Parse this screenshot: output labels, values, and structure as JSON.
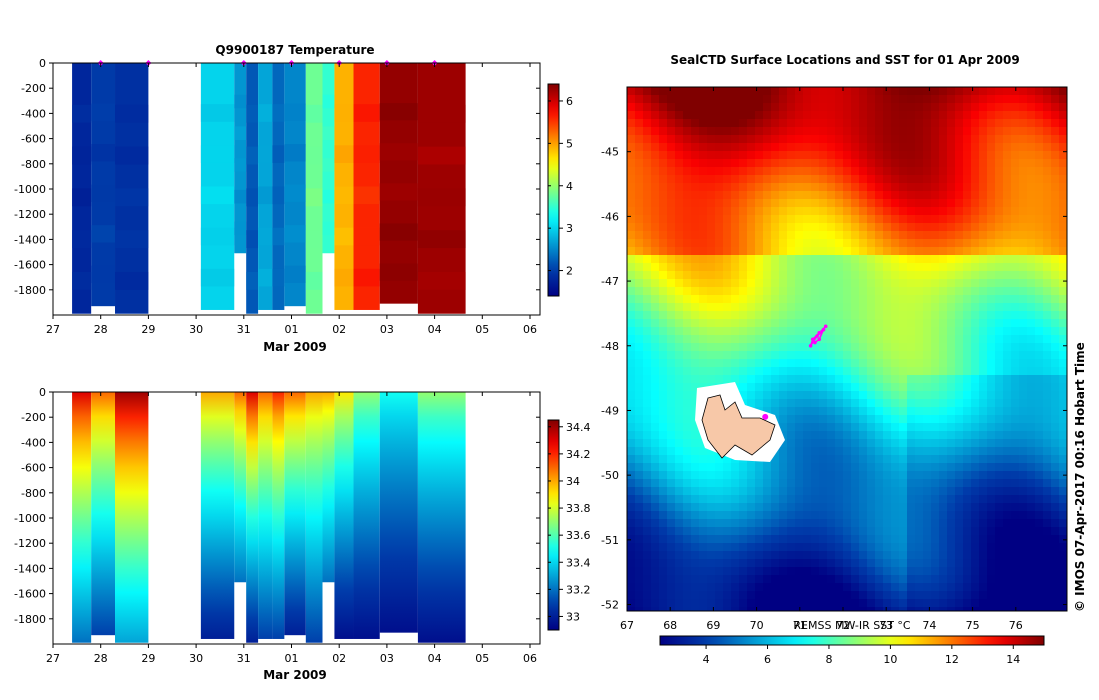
{
  "credit": "© IMOS 07-Apr-2017 00:16 Hobart Time",
  "chart_data": [
    {
      "type": "heatmap",
      "title": "Q9900187  Temperature",
      "xlabel": "Mar 2009",
      "ylabel": "",
      "x_tick_labels": [
        "27",
        "28",
        "29",
        "30",
        "31",
        "01",
        "02",
        "03",
        "04",
        "05",
        "06"
      ],
      "y_ticks": [
        0,
        -200,
        -400,
        -600,
        -800,
        -1000,
        -1200,
        -1400,
        -1600,
        -1800
      ],
      "xlim": [
        27,
        37.1
      ],
      "ylim": [
        -2000,
        0
      ],
      "colorbar": {
        "ticks": [
          2,
          3,
          4,
          5,
          6
        ],
        "range": [
          1.4,
          6.4
        ]
      },
      "profiles": [
        {
          "x0": 27.4,
          "x1": 27.8,
          "bottom": -1990,
          "value": 1.8
        },
        {
          "x0": 27.8,
          "x1": 28.3,
          "bottom": -1930,
          "value": 2.0
        },
        {
          "x0": 28.3,
          "x1": 29.0,
          "bottom": -1990,
          "value": 1.9
        },
        {
          "x0": 30.1,
          "x1": 30.8,
          "bottom": -1960,
          "value": 3.0
        },
        {
          "x0": 30.8,
          "x1": 31.05,
          "bottom": -1510,
          "value": 2.6
        },
        {
          "x0": 31.05,
          "x1": 31.3,
          "bottom": -1990,
          "value": 2.2
        },
        {
          "x0": 31.3,
          "x1": 31.6,
          "bottom": -1960,
          "value": 2.7
        },
        {
          "x0": 31.6,
          "x1": 31.85,
          "bottom": -1960,
          "value": 2.3
        },
        {
          "x0": 31.85,
          "x1": 32.3,
          "bottom": -1930,
          "value": 2.5
        },
        {
          "x0": 32.3,
          "x1": 32.65,
          "bottom": -1990,
          "value": 3.8
        },
        {
          "x0": 32.65,
          "x1": 32.9,
          "bottom": -1510,
          "value": 3.5
        },
        {
          "x0": 32.9,
          "x1": 33.3,
          "bottom": -1960,
          "value": 4.9
        },
        {
          "x0": 33.3,
          "x1": 33.85,
          "bottom": -1960,
          "value": 5.6
        },
        {
          "x0": 33.85,
          "x1": 34.65,
          "bottom": -1910,
          "value": 6.3
        },
        {
          "x0": 34.65,
          "x1": 35.65,
          "bottom": -1990,
          "value": 6.25
        }
      ],
      "surface_markers": [
        28,
        29,
        31,
        32,
        33,
        34,
        35
      ]
    },
    {
      "type": "heatmap",
      "title": "",
      "xlabel": "Mar 2009",
      "ylabel": "",
      "x_tick_labels": [
        "27",
        "28",
        "29",
        "30",
        "31",
        "01",
        "02",
        "03",
        "04",
        "05",
        "06"
      ],
      "y_ticks": [
        0,
        -200,
        -400,
        -600,
        -800,
        -1000,
        -1200,
        -1400,
        -1600,
        -1800
      ],
      "xlim": [
        27,
        37.1
      ],
      "ylim": [
        -2000,
        0
      ],
      "colorbar": {
        "ticks": [
          33,
          33.2,
          33.4,
          33.6,
          33.8,
          34,
          34.2,
          34.4
        ],
        "range": [
          32.9,
          34.45
        ]
      },
      "profiles": [
        {
          "x0": 27.4,
          "x1": 27.8,
          "bottom": -1990,
          "top_value": 34.3,
          "bottom_value": 33.2
        },
        {
          "x0": 27.8,
          "x1": 28.3,
          "bottom": -1930,
          "top_value": 34.1,
          "bottom_value": 33.1
        },
        {
          "x0": 28.3,
          "x1": 29.0,
          "bottom": -1990,
          "top_value": 34.4,
          "bottom_value": 33.3
        },
        {
          "x0": 30.1,
          "x1": 30.8,
          "bottom": -1960,
          "top_value": 34.0,
          "bottom_value": 33.0
        },
        {
          "x0": 30.8,
          "x1": 31.05,
          "bottom": -1510,
          "top_value": 34.1,
          "bottom_value": 33.2
        },
        {
          "x0": 31.05,
          "x1": 31.3,
          "bottom": -1990,
          "top_value": 34.3,
          "bottom_value": 33.0
        },
        {
          "x0": 31.3,
          "x1": 31.6,
          "bottom": -1960,
          "top_value": 34.1,
          "bottom_value": 33.1
        },
        {
          "x0": 31.6,
          "x1": 31.85,
          "bottom": -1960,
          "top_value": 34.2,
          "bottom_value": 33.1
        },
        {
          "x0": 31.85,
          "x1": 32.3,
          "bottom": -1930,
          "top_value": 34.1,
          "bottom_value": 33.0
        },
        {
          "x0": 32.3,
          "x1": 32.65,
          "bottom": -1990,
          "top_value": 34.0,
          "bottom_value": 33.1
        },
        {
          "x0": 32.65,
          "x1": 32.9,
          "bottom": -1510,
          "top_value": 34.0,
          "bottom_value": 33.2
        },
        {
          "x0": 32.9,
          "x1": 33.3,
          "bottom": -1960,
          "top_value": 33.9,
          "bottom_value": 32.95
        },
        {
          "x0": 33.3,
          "x1": 33.85,
          "bottom": -1960,
          "top_value": 33.7,
          "bottom_value": 32.95
        },
        {
          "x0": 33.85,
          "x1": 34.65,
          "bottom": -1910,
          "top_value": 33.5,
          "bottom_value": 32.95
        },
        {
          "x0": 34.65,
          "x1": 35.65,
          "bottom": -1990,
          "top_value": 33.7,
          "bottom_value": 32.95
        }
      ]
    },
    {
      "type": "heatmap",
      "title": "SealCTD Surface Locations and SST for 01 Apr 2009",
      "xlabel": "",
      "ylabel": "",
      "x_ticks": [
        67,
        68,
        69,
        70,
        71,
        72,
        73,
        74,
        75,
        76
      ],
      "y_ticks": [
        -45,
        -46,
        -47,
        -48,
        -49,
        -50,
        -51,
        -52
      ],
      "xlim": [
        67,
        77.2
      ],
      "ylim": [
        -52.1,
        -44.0
      ],
      "colorbar": {
        "label": "REMSS MW-IR SST °C",
        "ticks": [
          4,
          6,
          8,
          10,
          12,
          14
        ],
        "range": [
          2.5,
          15
        ]
      },
      "seal_track": [
        [
          71.6,
          -47.7
        ],
        [
          71.45,
          -47.8
        ],
        [
          71.3,
          -47.9
        ],
        [
          71.25,
          -48.0
        ],
        [
          71.4,
          -47.85
        ],
        [
          71.55,
          -47.75
        ],
        [
          71.45,
          -47.9
        ],
        [
          71.35,
          -47.95
        ]
      ],
      "island_point": [
        70.2,
        -49.1
      ]
    }
  ]
}
